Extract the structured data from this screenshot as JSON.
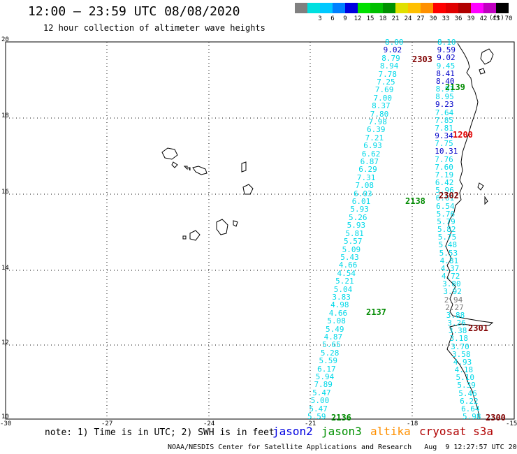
{
  "title": "12:00 – 23:59 UTC 08/08/2020",
  "subtitle": "12 hour collection of altimeter wave heights",
  "scale": {
    "unit": "(ft)",
    "bins": [
      {
        "label": "",
        "color": "#808080"
      },
      {
        "label": "3",
        "color": "#00e0e0"
      },
      {
        "label": "6",
        "color": "#00c8ff"
      },
      {
        "label": "9",
        "color": "#0080ff"
      },
      {
        "label": "12",
        "color": "#0000e0"
      },
      {
        "label": "15",
        "color": "#00e000"
      },
      {
        "label": "18",
        "color": "#00c000"
      },
      {
        "label": "21",
        "color": "#009000"
      },
      {
        "label": "24",
        "color": "#e0e000"
      },
      {
        "label": "27",
        "color": "#ffc000"
      },
      {
        "label": "30",
        "color": "#ff9000"
      },
      {
        "label": "33",
        "color": "#ff0000"
      },
      {
        "label": "36",
        "color": "#e00000"
      },
      {
        "label": "39",
        "color": "#b00000"
      },
      {
        "label": "42",
        "color": "#ff00ff"
      },
      {
        "label": "45",
        "color": "#c000c0"
      },
      {
        "label": "70",
        "color": "#000000"
      }
    ]
  },
  "lat_labels": [
    "20",
    "18",
    "16",
    "14",
    "12",
    "10"
  ],
  "lon_labels": [
    "-30",
    "-27",
    "-24",
    "-21",
    "-18",
    "-15"
  ],
  "note": "note: 1) Time is in UTC; 2) SWH is in feet",
  "legend": [
    {
      "name": "jason2",
      "color": "#0000e0"
    },
    {
      "name": "jason3",
      "color": "#009000"
    },
    {
      "name": "altika",
      "color": "#ff9000"
    },
    {
      "name": "cryosat s3a",
      "color": "#b00000"
    }
  ],
  "credit": "NOAA/NESDIS Center for Satellite Applications and Research   Aug  9 12:27:57 UTC 2020",
  "track_west": [
    "8.00",
    "9.02",
    "8.79",
    "8.94",
    "7.78",
    "7.25",
    "7.69",
    "7.00",
    "8.37",
    "7.80",
    "7.98",
    "6.39",
    "7.21",
    "6.93",
    "6.62",
    "6.87",
    "6.29",
    "7.31",
    "7.08",
    "6.03",
    "6.01",
    "5.93",
    "5.26",
    "5.93",
    "5.81",
    "5.57",
    "5.09",
    "5.43",
    "4.66",
    "4.54",
    "5.21",
    "5.04",
    "3.83",
    "4.98",
    "4.66",
    "5.08",
    "5.49",
    "4.87",
    "5.65",
    "5.28",
    "5.59",
    "6.17",
    "5.94",
    "7.89",
    "5.47",
    "5.00",
    "5.47",
    "5.59"
  ],
  "track_west_dark": [
    1
  ],
  "track_east": [
    "8.10",
    "9.59",
    "9.02",
    "9.45",
    "8.41",
    "8.40",
    "8.91",
    "8.95",
    "9.23",
    "7.64",
    "7.85",
    "7.81",
    "9.34",
    "7.75",
    "10.31",
    "7.76",
    "7.60",
    "7.19",
    "6.42",
    "5.96",
    "6.61",
    "6.54",
    "5.76",
    "5.79",
    "5.82",
    "5.75",
    "5.48",
    "5.53",
    "4.81",
    "4.37",
    "4.72",
    "3.80",
    "3.92",
    "2.94",
    "2.27",
    "3.88",
    "3.26",
    "3.38",
    "3.18",
    "3.70",
    "3.58",
    "4.93",
    "4.18",
    "5.10",
    "5.39",
    "5.46",
    "6.22",
    "6.64",
    "5.98"
  ],
  "track_east_dark": [
    1,
    2,
    4,
    5,
    8,
    12,
    14
  ],
  "track_east_grey": [
    33,
    34
  ],
  "times": [
    {
      "t": "2303",
      "cls": "s3"
    },
    {
      "t": "2139",
      "cls": "j3"
    },
    {
      "t": "1200",
      "cls": "red"
    },
    {
      "t": "2302",
      "cls": "s3"
    },
    {
      "t": "2138",
      "cls": "j3"
    },
    {
      "t": "2137",
      "cls": "j3"
    },
    {
      "t": "2301",
      "cls": "s3"
    },
    {
      "t": "2136",
      "cls": "j3"
    },
    {
      "t": "2300",
      "cls": "s3"
    }
  ]
}
